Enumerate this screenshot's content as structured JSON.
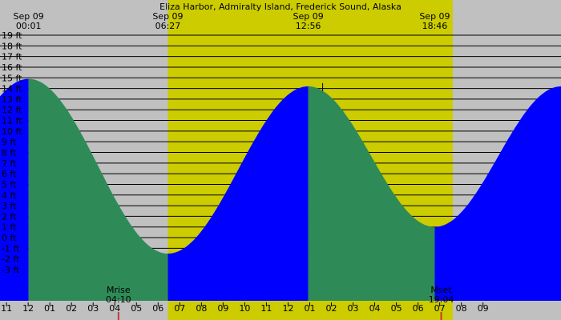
{
  "chart_data": {
    "type": "area",
    "title": "Eliza Harbor, Admiralty Island, Frederick Sound, Alaska",
    "ylim": [
      -3,
      19
    ],
    "y_ticks": [
      "19 ft",
      "18 ft",
      "17 ft",
      "16 ft",
      "15 ft",
      "14 ft",
      "13 ft",
      "12 ft",
      "11 ft",
      "10 ft",
      "9 ft",
      "8 ft",
      "7 ft",
      "6 ft",
      "5 ft",
      "4 ft",
      "3 ft",
      "2 ft",
      "1 ft",
      "0 ft",
      "-1 ft",
      "-2 ft",
      "-3 ft"
    ],
    "x_unit": "hour",
    "x_range": [
      -1.3,
      24.6
    ],
    "x_ticks": [
      {
        "label": "11",
        "hour": -1
      },
      {
        "label": "12",
        "hour": 0
      },
      {
        "label": "01",
        "hour": 1
      },
      {
        "label": "02",
        "hour": 2
      },
      {
        "label": "03",
        "hour": 3
      },
      {
        "label": "04",
        "hour": 4
      },
      {
        "label": "05",
        "hour": 5
      },
      {
        "label": "06",
        "hour": 6
      },
      {
        "label": "07",
        "hour": 7
      },
      {
        "label": "08",
        "hour": 8
      },
      {
        "label": "09",
        "hour": 9
      },
      {
        "label": "10",
        "hour": 10
      },
      {
        "label": "11",
        "hour": 11
      },
      {
        "label": "12",
        "hour": 12
      },
      {
        "label": "01",
        "hour": 13
      },
      {
        "label": "02",
        "hour": 14
      },
      {
        "label": "03",
        "hour": 15
      },
      {
        "label": "04",
        "hour": 16
      },
      {
        "label": "05",
        "hour": 17
      },
      {
        "label": "06",
        "hour": 18
      },
      {
        "label": "07",
        "hour": 19
      },
      {
        "label": "08",
        "hour": 20
      },
      {
        "label": "09",
        "hour": 21
      }
    ],
    "daylight": {
      "start_hour": 6.45,
      "end_hour": 19.6
    },
    "top_labels": [
      {
        "date": "Sep 09",
        "time": "00:01",
        "hour": 0.02
      },
      {
        "date": "Sep 09",
        "time": "06:27",
        "hour": 6.45
      },
      {
        "date": "Sep 09",
        "time": "12:56",
        "hour": 12.93
      },
      {
        "date": "Sep 09",
        "time": "18:46",
        "hour": 18.77
      }
    ],
    "tide_extremes": [
      {
        "hour": 0.02,
        "height": 14.9
      },
      {
        "hour": 6.45,
        "height": -1.5
      },
      {
        "hour": 12.93,
        "height": 14.2
      },
      {
        "hour": 18.77,
        "height": 1.0
      }
    ],
    "tide_range_edges": {
      "before_first": -1.5,
      "after_last": 14.2
    },
    "moon_events": [
      {
        "name": "Mrise",
        "time": "04:10",
        "hour": 4.17
      },
      {
        "name": "Mset",
        "time": "19:04",
        "hour": 19.07
      }
    ],
    "colors": {
      "background": "#c0c0c0",
      "daylight": "#cccc00",
      "rising_tide": "#2e8b57",
      "falling_tide": "#0000ff",
      "grid": "#000000",
      "moon_marker": "#cc3333"
    }
  }
}
